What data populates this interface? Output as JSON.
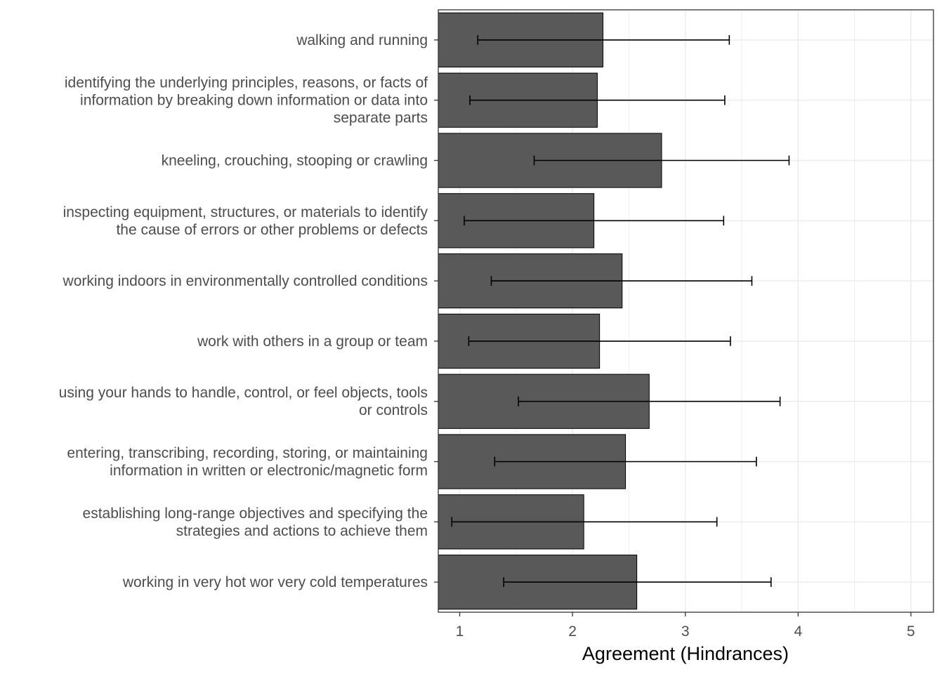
{
  "chart_data": {
    "type": "bar",
    "orientation": "horizontal",
    "xlabel": "Agreement (Hindrances)",
    "ylabel": "",
    "title": "",
    "xlim": [
      0.81,
      5.2
    ],
    "xticks": [
      1,
      2,
      3,
      4,
      5
    ],
    "grid": true,
    "legend": "none",
    "colors": {
      "bar": "#595959",
      "bar_outline": "#000000",
      "error_bar": "#000000",
      "grid": "#ebebeb",
      "panel_border": "#333333"
    },
    "categories": [
      {
        "label": [
          "walking and running"
        ],
        "value": 2.27,
        "err_low": 1.16,
        "err_high": 3.39
      },
      {
        "label": [
          "identifying the underlying principles, reasons, or facts of",
          "information by breaking down information or data into",
          "separate parts"
        ],
        "value": 2.22,
        "err_low": 1.09,
        "err_high": 3.35
      },
      {
        "label": [
          "kneeling, crouching, stooping or crawling"
        ],
        "value": 2.79,
        "err_low": 1.66,
        "err_high": 3.92
      },
      {
        "label": [
          "inspecting equipment, structures, or materials to identify",
          "the cause of errors or other problems or defects"
        ],
        "value": 2.19,
        "err_low": 1.04,
        "err_high": 3.34
      },
      {
        "label": [
          "working indoors in environmentally controlled conditions"
        ],
        "value": 2.44,
        "err_low": 1.28,
        "err_high": 3.59
      },
      {
        "label": [
          "work with others in a group or team"
        ],
        "value": 2.24,
        "err_low": 1.08,
        "err_high": 3.4
      },
      {
        "label": [
          "using your hands to handle, control, or feel objects, tools",
          "or controls"
        ],
        "value": 2.68,
        "err_low": 1.52,
        "err_high": 3.84
      },
      {
        "label": [
          "entering, transcribing, recording, storing, or maintaining",
          "information in written or electronic/magnetic form"
        ],
        "value": 2.47,
        "err_low": 1.31,
        "err_high": 3.63
      },
      {
        "label": [
          "establishing long-range objectives and specifying the",
          "strategies and actions to achieve them"
        ],
        "value": 2.1,
        "err_low": 0.93,
        "err_high": 3.28
      },
      {
        "label": [
          "working in very hot wor very cold temperatures"
        ],
        "value": 2.57,
        "err_low": 1.39,
        "err_high": 3.76
      }
    ]
  }
}
